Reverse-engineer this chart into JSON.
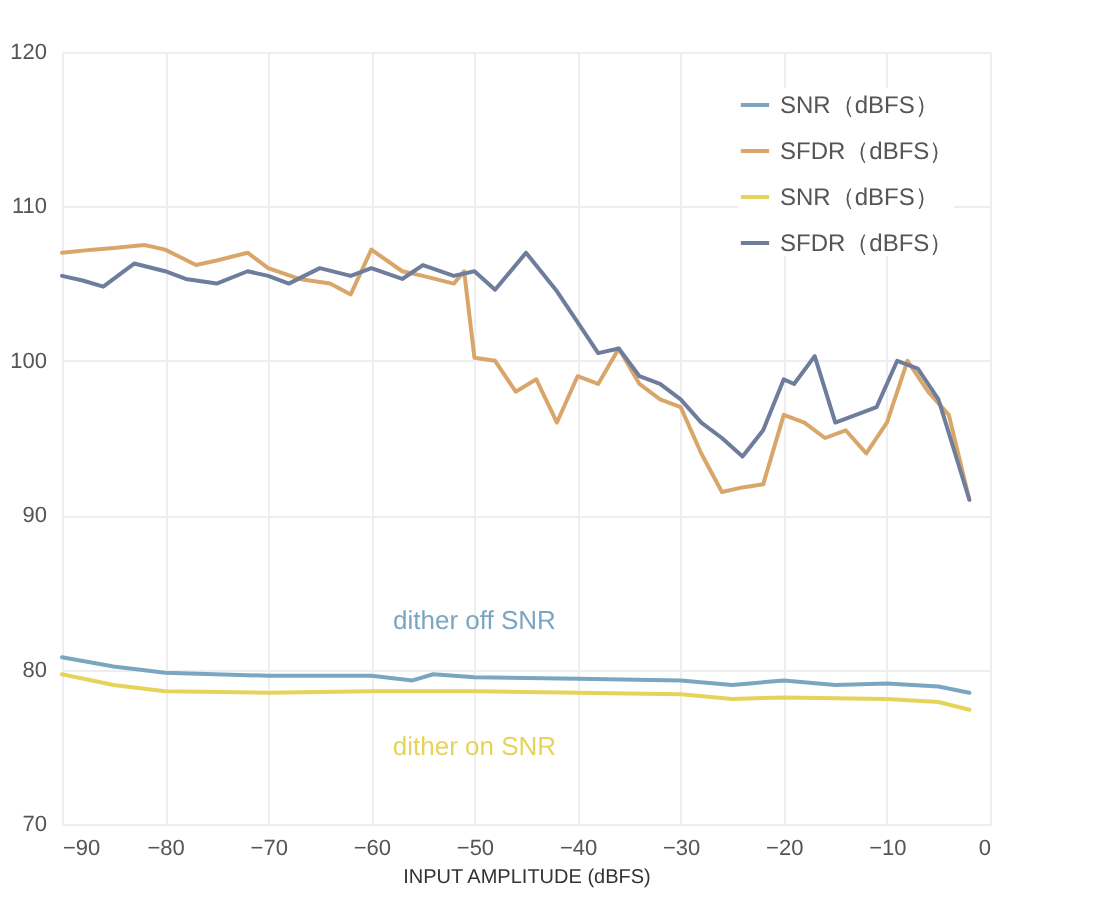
{
  "chart_data": {
    "type": "line",
    "xlabel": "INPUT AMPLITUDE (dBFS)",
    "xlim": [
      -90,
      0
    ],
    "xticks": [
      -90,
      -80,
      -70,
      -60,
      -50,
      -40,
      -30,
      -20,
      -10,
      0
    ],
    "ylim": [
      70,
      120
    ],
    "yticks": [
      70,
      80,
      90,
      100,
      110,
      120
    ],
    "grid": true,
    "legend": "top right",
    "line_style": "solid",
    "marker": "none",
    "series": [
      {
        "name": "SNR（dBFS）",
        "color": "#7aa6c2",
        "x": [
          -90,
          -85,
          -80,
          -70,
          -60,
          -56,
          -54,
          -50,
          -40,
          -30,
          -25,
          -20,
          -15,
          -10,
          -5,
          -2
        ],
        "values": [
          80.8,
          80.2,
          79.8,
          79.6,
          79.6,
          79.3,
          79.7,
          79.5,
          79.4,
          79.3,
          79.0,
          79.3,
          79.0,
          79.1,
          78.9,
          78.5
        ]
      },
      {
        "name": "SFDR（dBFS）",
        "color": "#d9a66a",
        "x": [
          -90,
          -87,
          -85,
          -82,
          -80,
          -77,
          -75,
          -72,
          -70,
          -67,
          -64,
          -62,
          -60,
          -57,
          -55,
          -52,
          -51,
          -50,
          -48,
          -46,
          -44,
          -42,
          -40,
          -38,
          -36,
          -34,
          -32,
          -30,
          -28,
          -26,
          -24,
          -22,
          -20,
          -18,
          -16,
          -14,
          -12,
          -10,
          -8,
          -6,
          -4,
          -2
        ],
        "values": [
          107.0,
          107.2,
          107.3,
          107.5,
          107.2,
          106.2,
          106.5,
          107.0,
          106.0,
          105.3,
          105.0,
          104.3,
          107.2,
          105.8,
          105.5,
          105.0,
          105.8,
          100.2,
          100.0,
          98.0,
          98.8,
          96.0,
          99.0,
          98.5,
          100.8,
          98.5,
          97.5,
          97.0,
          94.0,
          91.5,
          91.8,
          92.0,
          96.5,
          96.0,
          95.0,
          95.5,
          94.0,
          96.0,
          100.0,
          98.0,
          96.5,
          91.0
        ]
      },
      {
        "name": "SNR（dBFS）",
        "color": "#e6d35a",
        "x": [
          -90,
          -85,
          -80,
          -70,
          -60,
          -50,
          -40,
          -30,
          -25,
          -20,
          -10,
          -5,
          -2
        ],
        "values": [
          79.7,
          79.0,
          78.6,
          78.5,
          78.6,
          78.6,
          78.5,
          78.4,
          78.1,
          78.2,
          78.1,
          77.9,
          77.4
        ]
      },
      {
        "name": "SFDR（dBFS）",
        "color": "#6f7d9c",
        "x": [
          -90,
          -88,
          -86,
          -83,
          -80,
          -78,
          -75,
          -72,
          -70,
          -68,
          -65,
          -62,
          -60,
          -57,
          -55,
          -52,
          -50,
          -48,
          -45,
          -42,
          -40,
          -38,
          -36,
          -34,
          -32,
          -30,
          -28,
          -26,
          -24,
          -22,
          -20,
          -19,
          -17,
          -15,
          -13,
          -11,
          -9,
          -7,
          -5,
          -2
        ],
        "values": [
          105.5,
          105.2,
          104.8,
          106.3,
          105.8,
          105.3,
          105.0,
          105.8,
          105.5,
          105.0,
          106.0,
          105.5,
          106.0,
          105.3,
          106.2,
          105.5,
          105.8,
          104.6,
          107.0,
          104.5,
          102.5,
          100.5,
          100.8,
          99.0,
          98.5,
          97.5,
          96.0,
          95.0,
          93.8,
          95.5,
          98.8,
          98.5,
          100.3,
          96.0,
          96.5,
          97.0,
          100.0,
          99.5,
          97.5,
          91.0
        ]
      }
    ],
    "annotations": [
      "dither off SNR",
      "dither on SNR"
    ]
  }
}
